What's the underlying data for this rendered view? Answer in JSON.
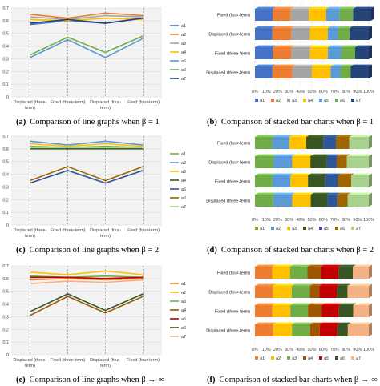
{
  "panels": [
    {
      "line": {
        "caption_tag": "(a)",
        "caption": "Comparison of line graphs when β = 1",
        "categories": [
          "Displaced (three-\nterm)",
          "Fixed (three-term)",
          "Displaced (four-\nterm)",
          "Fixed (four-term)"
        ],
        "yticks": [
          "0",
          "0.1",
          "0.2",
          "0.3",
          "0.4",
          "0.5",
          "0.6",
          "0.7"
        ]
      },
      "bar": {
        "caption_tag": "(b)",
        "caption": "Comparison of stacked bar charts when β = 1",
        "rows": [
          "Fixed (four-term)",
          "Displaced (four-term)",
          "Fixed (three-term)",
          "Displaced (three-term)"
        ],
        "xticks": [
          "0%",
          "10%",
          "20%",
          "30%",
          "40%",
          "50%",
          "60%",
          "70%",
          "80%",
          "90%",
          "100%"
        ]
      }
    },
    {
      "line": {
        "caption_tag": "(c)",
        "caption": "Comparison of line graphs when β = 2",
        "categories": [
          "Displaced (three-\nterm)",
          "Fixed (three-term)",
          "Displaced (four-\nterm)",
          "Fixed (four-term)"
        ],
        "yticks": [
          "0",
          "0.1",
          "0.2",
          "0.3",
          "0.4",
          "0.5",
          "0.6",
          "0.7"
        ]
      },
      "bar": {
        "caption_tag": "(d)",
        "caption": "Comparison of stacked bar charts when β = 2",
        "rows": [
          "Fixed (four-term)",
          "Displaced (four-term)",
          "Fixed (three-term)",
          "Displaced (three-term)"
        ],
        "xticks": [
          "0%",
          "10%",
          "20%",
          "30%",
          "40%",
          "50%",
          "60%",
          "70%",
          "80%",
          "90%",
          "100%"
        ]
      }
    },
    {
      "line": {
        "caption_tag": "(e)",
        "caption": "Comparison of line graphs when β → ∞",
        "categories": [
          "Displaced (three-\nterm)",
          "Fixed (three-term)",
          "Displaced (four-\nterm)",
          "Fixed (four-term)"
        ],
        "yticks": [
          "0",
          "0.1",
          "0.2",
          "0.3",
          "0.4",
          "0.5",
          "0.6",
          "0.7"
        ]
      },
      "bar": {
        "caption_tag": "(f)",
        "caption": "Comparison of stacked bar charts when β → ∞",
        "rows": [
          "Fixed (four-term)",
          "Displaced (four-term)",
          "Fixed (three-term)",
          "Displaced (three-term)"
        ],
        "xticks": [
          "0%",
          "10%",
          "20%",
          "30%",
          "40%",
          "50%",
          "60%",
          "70%",
          "80%",
          "90%",
          "100%"
        ]
      }
    }
  ],
  "chart_data": [
    {
      "type": "line",
      "categories": [
        "Displaced (three-term)",
        "Fixed (three-term)",
        "Displaced (four-term)",
        "Fixed (four-term)"
      ],
      "ylim": [
        0,
        0.7
      ],
      "grid": true,
      "legend": "right",
      "series": [
        {
          "name": "a1",
          "color": "#4472c4",
          "values": [
            0.57,
            0.6,
            0.58,
            0.62
          ]
        },
        {
          "name": "a2",
          "color": "#ed7d31",
          "values": [
            0.65,
            0.62,
            0.66,
            0.64
          ]
        },
        {
          "name": "a3",
          "color": "#a5a5a5",
          "values": [
            0.63,
            0.61,
            0.64,
            0.63
          ]
        },
        {
          "name": "a4",
          "color": "#ffc000",
          "values": [
            0.61,
            0.6,
            0.62,
            0.61
          ]
        },
        {
          "name": "a5",
          "color": "#5b9bd5",
          "values": [
            0.31,
            0.45,
            0.31,
            0.46
          ]
        },
        {
          "name": "a6",
          "color": "#70ad47",
          "values": [
            0.33,
            0.47,
            0.35,
            0.48
          ]
        },
        {
          "name": "a7",
          "color": "#264478",
          "values": [
            0.58,
            0.61,
            0.58,
            0.62
          ]
        }
      ]
    },
    {
      "type": "bar",
      "orientation": "horizontal",
      "stacked": "percent",
      "categories": [
        "Fixed (four-term)",
        "Displaced (four-term)",
        "Fixed (three-term)",
        "Displaced (three-term)"
      ],
      "xlim": [
        0,
        100
      ],
      "legend": "bottom",
      "series": [
        {
          "name": "a1",
          "color": "#4472c4",
          "values": [
            15.5,
            15.3,
            15.7,
            15.4
          ]
        },
        {
          "name": "a2",
          "color": "#ed7d31",
          "values": [
            16.0,
            16.7,
            16.4,
            17.6
          ]
        },
        {
          "name": "a3",
          "color": "#a5a5a5",
          "values": [
            15.8,
            16.2,
            16.1,
            17.0
          ]
        },
        {
          "name": "a4",
          "color": "#ffc000",
          "values": [
            15.3,
            15.8,
            15.9,
            16.5
          ]
        },
        {
          "name": "a5",
          "color": "#5b9bd5",
          "values": [
            11.6,
            8.9,
            11.6,
            8.5
          ]
        },
        {
          "name": "a6",
          "color": "#70ad47",
          "values": [
            12.0,
            10.2,
            12.2,
            9.0
          ]
        },
        {
          "name": "a7",
          "color": "#264478",
          "values": [
            15.5,
            16.9,
            12.1,
            16.0
          ]
        }
      ]
    },
    {
      "type": "line",
      "categories": [
        "Displaced (three-term)",
        "Fixed (three-term)",
        "Displaced (four-term)",
        "Fixed (four-term)"
      ],
      "ylim": [
        0,
        0.7
      ],
      "grid": true,
      "legend": "right",
      "series": [
        {
          "name": "a1",
          "color": "#70ad47",
          "values": [
            0.62,
            0.61,
            0.62,
            0.61
          ]
        },
        {
          "name": "a2",
          "color": "#5b9bd5",
          "values": [
            0.66,
            0.63,
            0.66,
            0.63
          ]
        },
        {
          "name": "a3",
          "color": "#ffc000",
          "values": [
            0.64,
            0.62,
            0.64,
            0.62
          ]
        },
        {
          "name": "a4",
          "color": "#375623",
          "values": [
            0.6,
            0.6,
            0.6,
            0.6
          ]
        },
        {
          "name": "a5",
          "color": "#2e5597",
          "values": [
            0.33,
            0.43,
            0.33,
            0.43
          ]
        },
        {
          "name": "a6",
          "color": "#9c6500",
          "values": [
            0.35,
            0.46,
            0.35,
            0.46
          ]
        },
        {
          "name": "a7",
          "color": "#a9d18e",
          "values": [
            0.61,
            0.61,
            0.61,
            0.61
          ]
        }
      ]
    },
    {
      "type": "bar",
      "orientation": "horizontal",
      "stacked": "percent",
      "categories": [
        "Fixed (four-term)",
        "Displaced (four-term)",
        "Fixed (three-term)",
        "Displaced (three-term)"
      ],
      "xlim": [
        0,
        100
      ],
      "legend": "bottom",
      "series": [
        {
          "name": "a1",
          "color": "#70ad47",
          "values": [
            15.2,
            16.2,
            15.4,
            16.0
          ]
        },
        {
          "name": "a2",
          "color": "#5b9bd5",
          "values": [
            15.0,
            16.5,
            15.8,
            16.8
          ]
        },
        {
          "name": "a3",
          "color": "#ffc000",
          "values": [
            14.9,
            16.0,
            15.4,
            16.2
          ]
        },
        {
          "name": "a4",
          "color": "#375623",
          "values": [
            15.0,
            14.6,
            15.2,
            14.8
          ]
        },
        {
          "name": "a5",
          "color": "#2e5597",
          "values": [
            11.0,
            8.5,
            11.1,
            8.6
          ]
        },
        {
          "name": "a6",
          "color": "#9c6500",
          "values": [
            11.8,
            9.0,
            11.7,
            9.1
          ]
        },
        {
          "name": "a7",
          "color": "#a9d18e",
          "values": [
            17.1,
            19.2,
            15.4,
            18.5
          ]
        }
      ]
    },
    {
      "type": "line",
      "categories": [
        "Displaced (three-term)",
        "Fixed (three-term)",
        "Displaced (four-term)",
        "Fixed (four-term)"
      ],
      "ylim": [
        0,
        0.7
      ],
      "grid": true,
      "legend": "right",
      "series": [
        {
          "name": "a1",
          "color": "#ed7d31",
          "values": [
            0.59,
            0.6,
            0.59,
            0.6
          ]
        },
        {
          "name": "a2",
          "color": "#ffc000",
          "values": [
            0.65,
            0.63,
            0.66,
            0.63
          ]
        },
        {
          "name": "a3",
          "color": "#70ad47",
          "values": [
            0.62,
            0.61,
            0.62,
            0.61
          ]
        },
        {
          "name": "a4",
          "color": "#9c5700",
          "values": [
            0.31,
            0.46,
            0.33,
            0.46
          ]
        },
        {
          "name": "a5",
          "color": "#c00000",
          "values": [
            0.61,
            0.61,
            0.6,
            0.61
          ]
        },
        {
          "name": "a6",
          "color": "#375623",
          "values": [
            0.34,
            0.48,
            0.35,
            0.48
          ]
        },
        {
          "name": "a7",
          "color": "#f4b183",
          "values": [
            0.56,
            0.58,
            0.57,
            0.59
          ]
        }
      ]
    },
    {
      "type": "bar",
      "orientation": "horizontal",
      "stacked": "percent",
      "categories": [
        "Fixed (four-term)",
        "Displaced (four-term)",
        "Fixed (three-term)",
        "Displaced (three-term)"
      ],
      "xlim": [
        0,
        100
      ],
      "legend": "bottom",
      "series": [
        {
          "name": "a1",
          "color": "#ed7d31",
          "values": [
            15.2,
            15.8,
            15.3,
            16.0
          ]
        },
        {
          "name": "a2",
          "color": "#ffc000",
          "values": [
            15.6,
            16.5,
            15.8,
            16.5
          ]
        },
        {
          "name": "a3",
          "color": "#70ad47",
          "values": [
            15.3,
            15.8,
            15.5,
            15.9
          ]
        },
        {
          "name": "a4",
          "color": "#9c5700",
          "values": [
            12.0,
            8.5,
            12.0,
            8.5
          ]
        },
        {
          "name": "a5",
          "color": "#c00000",
          "values": [
            15.4,
            15.5,
            15.2,
            15.5
          ]
        },
        {
          "name": "a6",
          "color": "#375623",
          "values": [
            12.5,
            9.2,
            12.5,
            9.2
          ]
        },
        {
          "name": "a7",
          "color": "#f4b183",
          "values": [
            14.0,
            18.7,
            13.7,
            18.4
          ]
        }
      ]
    }
  ]
}
